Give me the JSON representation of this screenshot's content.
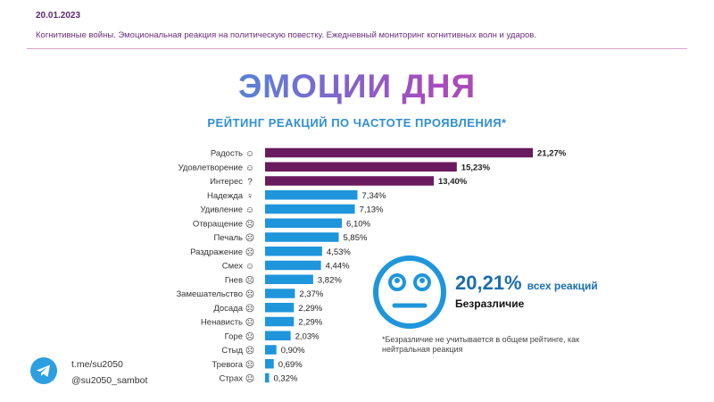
{
  "header": {
    "date": "20.01.2023",
    "subtitle": "Когнитивные войны. Эмоциональная реакция на политическую повестку. Ежедневный мониторинг когнитивных волн и ударов."
  },
  "headline": "ЭМОЦИИ ДНЯ",
  "chart_data": {
    "type": "bar",
    "orientation": "horizontal",
    "title": "РЕЙТИНГ РЕАКЦИЙ ПО ЧАСТОТЕ ПРОЯВЛЕНИЯ*",
    "categories": [
      "Радость",
      "Удовлетворение",
      "Интерес",
      "Надежда",
      "Удивление",
      "Отвращение",
      "Печаль",
      "Раздражение",
      "Смех",
      "Гнев",
      "Замешательство",
      "Досада",
      "Ненависть",
      "Горе",
      "Стыд",
      "Тревога",
      "Страх"
    ],
    "values": [
      21.27,
      15.23,
      13.4,
      7.34,
      7.13,
      6.1,
      5.85,
      4.53,
      4.44,
      3.82,
      2.37,
      2.29,
      2.29,
      2.03,
      0.9,
      0.69,
      0.32
    ],
    "data_labels": [
      "21,27%",
      "15,23%",
      "13,40%",
      "7,34%",
      "7,13%",
      "6,10%",
      "5,85%",
      "4,53%",
      "4,44%",
      "3,82%",
      "2,37%",
      "2,29%",
      "2,29%",
      "2,03%",
      "0,90%",
      "0,69%",
      "0,32%"
    ],
    "highlight_top": 3,
    "colors": {
      "highlight": "#6a1a5e",
      "default": "#1f95dc"
    },
    "grid": false
  },
  "callout": {
    "percent": "20,21%",
    "suffix": "всех реакций",
    "label": "Безразличие",
    "footnote": "*Безразличие не учитывается в общем рейтинге, как нейтральная реакция",
    "icon": "neutral-face-icon",
    "color": "#1f95dc"
  },
  "contacts": {
    "icon": "telegram-icon",
    "channel": "t.me/su2050",
    "bot": "@su2050_sambot",
    "color": "#2b9fe0"
  }
}
